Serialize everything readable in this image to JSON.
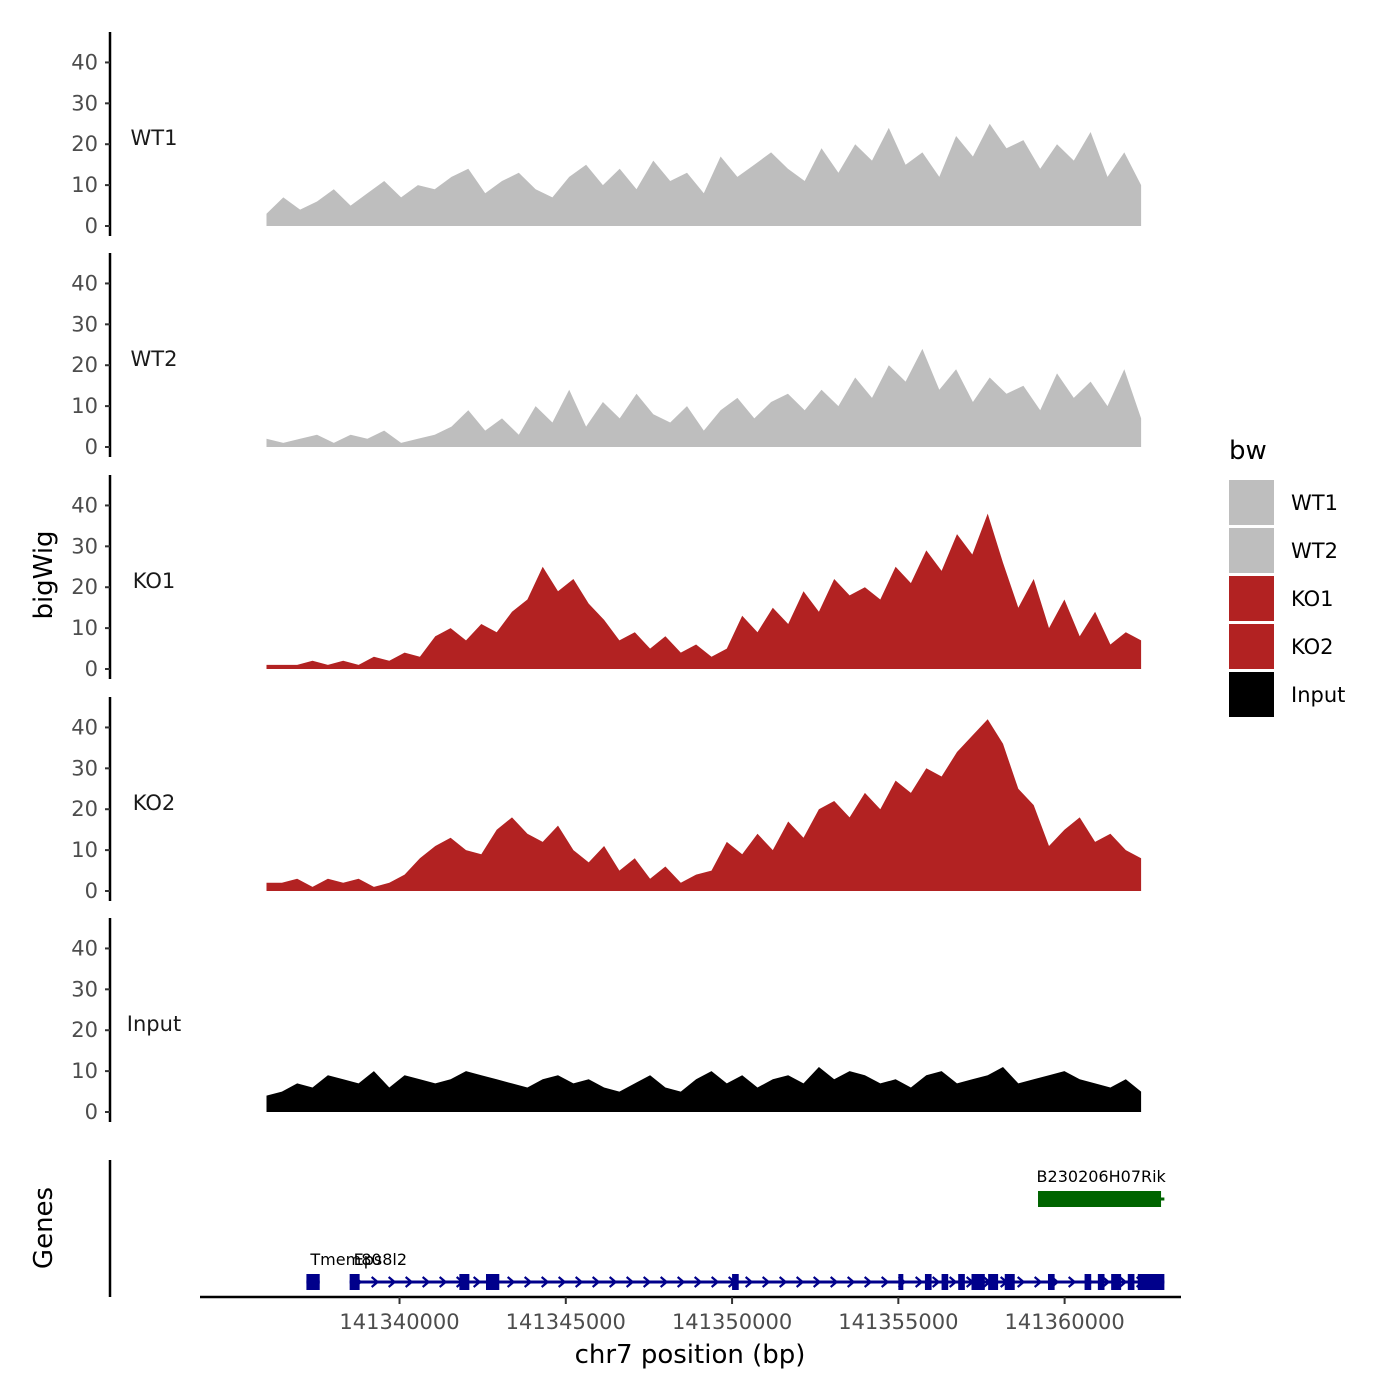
{
  "chart_data": {
    "type": "area",
    "xlabel": "chr7 position (bp)",
    "ylabel": "bigWig",
    "genes_label": "Genes",
    "xlim": [
      141334000,
      141363500
    ],
    "ylim": [
      0,
      45
    ],
    "y_ticks": [
      "0",
      "10",
      "20",
      "30",
      "40"
    ],
    "x_ticks": [
      {
        "value": 141340000,
        "label": "141340000"
      },
      {
        "value": 141345000,
        "label": "141345000"
      },
      {
        "value": 141350000,
        "label": "141350000"
      },
      {
        "value": 141355000,
        "label": "141355000"
      },
      {
        "value": 141360000,
        "label": "141360000"
      }
    ],
    "x_range": [
      141336000,
      141362300
    ],
    "series": [
      {
        "name": "WT1",
        "color": "#bebebe",
        "values": [
          3,
          7,
          4,
          6,
          9,
          5,
          8,
          11,
          7,
          10,
          9,
          12,
          14,
          8,
          11,
          13,
          9,
          7,
          12,
          15,
          10,
          14,
          9,
          16,
          11,
          13,
          8,
          17,
          12,
          15,
          18,
          14,
          11,
          19,
          13,
          20,
          16,
          24,
          15,
          18,
          12,
          22,
          17,
          25,
          19,
          21,
          14,
          20,
          16,
          23,
          12,
          18,
          10
        ]
      },
      {
        "name": "WT2",
        "color": "#bebebe",
        "values": [
          2,
          1,
          2,
          3,
          1,
          3,
          2,
          4,
          1,
          2,
          3,
          5,
          9,
          4,
          7,
          3,
          10,
          6,
          14,
          5,
          11,
          7,
          13,
          8,
          6,
          10,
          4,
          9,
          12,
          7,
          11,
          13,
          9,
          14,
          10,
          17,
          12,
          20,
          16,
          24,
          14,
          19,
          11,
          17,
          13,
          15,
          9,
          18,
          12,
          16,
          10,
          19,
          7
        ]
      },
      {
        "name": "KO1",
        "color": "#b22222",
        "values": [
          1,
          1,
          1,
          2,
          1,
          2,
          1,
          3,
          2,
          4,
          3,
          8,
          10,
          7,
          11,
          9,
          14,
          17,
          25,
          19,
          22,
          16,
          12,
          7,
          9,
          5,
          8,
          4,
          6,
          3,
          5,
          13,
          9,
          15,
          11,
          19,
          14,
          22,
          18,
          20,
          17,
          25,
          21,
          29,
          24,
          33,
          28,
          38,
          26,
          15,
          22,
          10,
          17,
          8,
          14,
          6,
          9,
          7
        ]
      },
      {
        "name": "KO2",
        "color": "#b22222",
        "values": [
          2,
          2,
          3,
          1,
          3,
          2,
          3,
          1,
          2,
          4,
          8,
          11,
          13,
          10,
          9,
          15,
          18,
          14,
          12,
          16,
          10,
          7,
          11,
          5,
          8,
          3,
          6,
          2,
          4,
          5,
          12,
          9,
          14,
          10,
          17,
          13,
          20,
          22,
          18,
          24,
          20,
          27,
          24,
          30,
          28,
          34,
          38,
          42,
          36,
          25,
          21,
          11,
          15,
          18,
          12,
          14,
          10,
          8
        ]
      },
      {
        "name": "Input",
        "color": "#000000",
        "values": [
          4,
          5,
          7,
          6,
          9,
          8,
          7,
          10,
          6,
          9,
          8,
          7,
          8,
          10,
          9,
          8,
          7,
          6,
          8,
          9,
          7,
          8,
          6,
          5,
          7,
          9,
          6,
          5,
          8,
          10,
          7,
          9,
          6,
          8,
          9,
          7,
          11,
          8,
          10,
          9,
          7,
          8,
          6,
          9,
          10,
          7,
          8,
          9,
          11,
          7,
          8,
          9,
          10,
          8,
          7,
          6,
          8,
          5
        ]
      }
    ],
    "legend": {
      "title": "bw",
      "items": [
        "WT1",
        "WT2",
        "KO1",
        "KO2",
        "Input"
      ],
      "position": "right"
    },
    "genes": [
      {
        "name": "Tmem80",
        "start": 141337200,
        "end": 141337600,
        "strand": "+",
        "color": "#00008b",
        "row": 2,
        "exons": [
          [
            141337200,
            141337600
          ]
        ]
      },
      {
        "name": "Eps8l2",
        "start": 141338500,
        "end": 141363000,
        "strand": "+",
        "color": "#00008b",
        "row": 2,
        "exons": [
          [
            141338500,
            141338800
          ],
          [
            141341800,
            141342100
          ],
          [
            141342600,
            141343000
          ],
          [
            141350000,
            141350200
          ],
          [
            141355000,
            141355150
          ],
          [
            141355800,
            141356000
          ],
          [
            141356300,
            141356500
          ],
          [
            141356800,
            141357000
          ],
          [
            141357200,
            141357600
          ],
          [
            141357700,
            141358000
          ],
          [
            141358200,
            141358500
          ],
          [
            141359500,
            141359700
          ],
          [
            141360600,
            141360800
          ],
          [
            141361000,
            141361200
          ],
          [
            141361400,
            141361700
          ],
          [
            141361900,
            141362100
          ],
          [
            141362200,
            141363000
          ]
        ]
      },
      {
        "name": "B230206H07Rik",
        "start": 141359200,
        "end": 141363000,
        "strand": "+",
        "color": "#006400",
        "row": 1,
        "exons": [
          [
            141359200,
            141362900
          ]
        ]
      }
    ]
  }
}
